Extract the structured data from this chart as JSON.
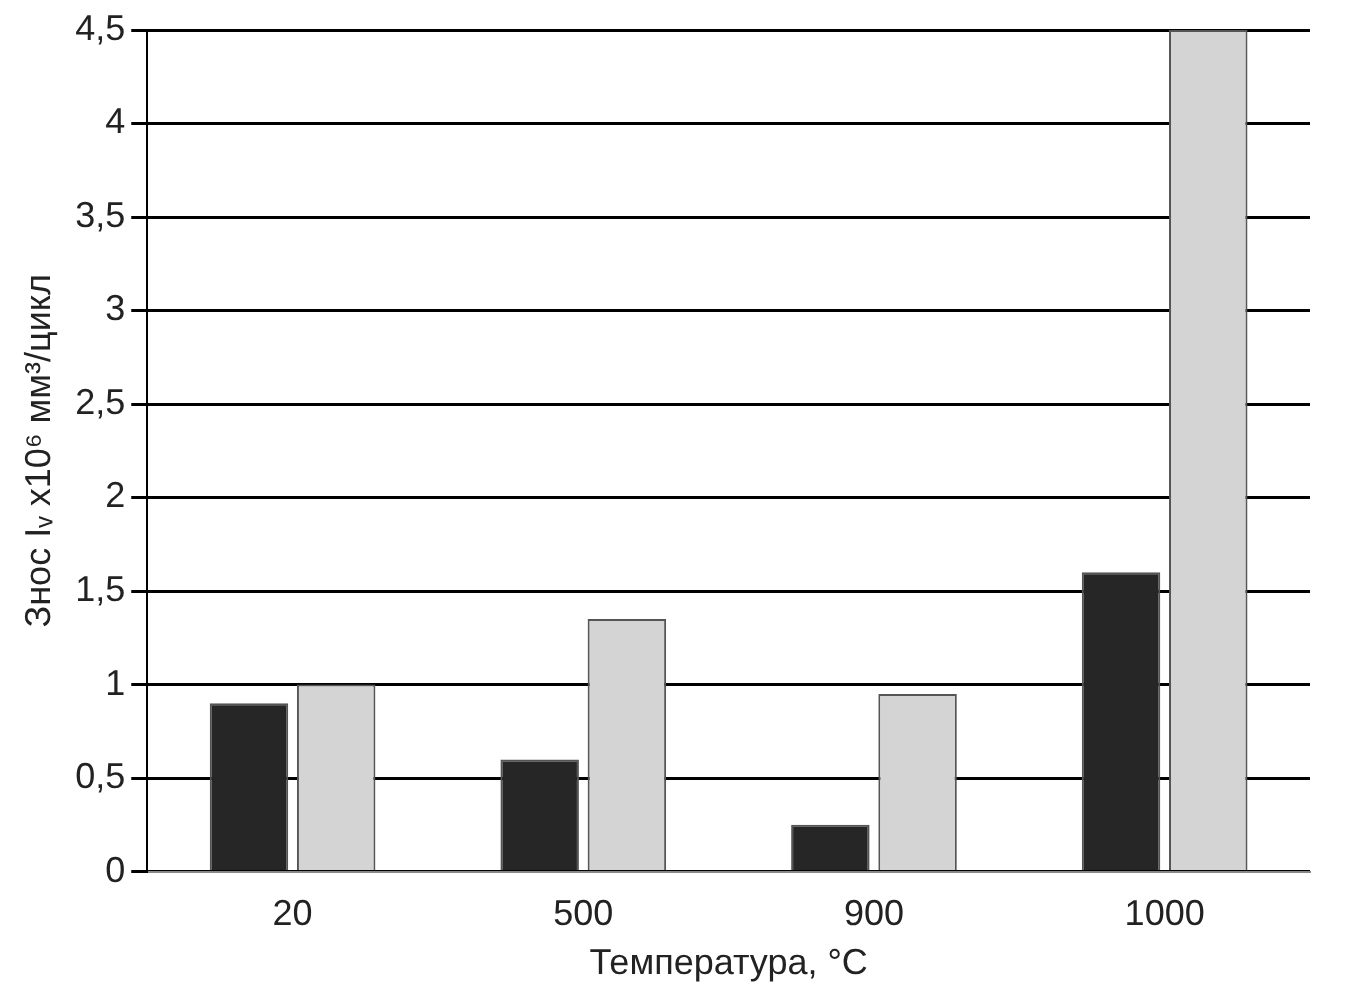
{
  "chart_data": {
    "type": "bar",
    "xlabel": "Температура, °C",
    "ylabel": "Знос Iᵥ x10⁶ мм³/цикл",
    "categories": [
      "20",
      "500",
      "900",
      "1000"
    ],
    "series": [
      {
        "color": "#262626",
        "values": [
          0.9,
          0.6,
          0.25,
          1.6
        ]
      },
      {
        "color": "#d4d4d4",
        "values": [
          1.0,
          1.35,
          0.95,
          4.5
        ]
      }
    ],
    "ylim": [
      0,
      4.5
    ],
    "yticks": [
      0,
      {
        "value": 0.5,
        "label": "0,5"
      },
      1,
      {
        "value": 1.5,
        "label": "1,5"
      },
      2,
      {
        "value": 2.5,
        "label": "2,5"
      },
      3,
      {
        "value": 3.5,
        "label": "3,5"
      },
      4,
      {
        "value": 4.5,
        "label": "4,5"
      }
    ],
    "grid": "y",
    "legend": false
  }
}
